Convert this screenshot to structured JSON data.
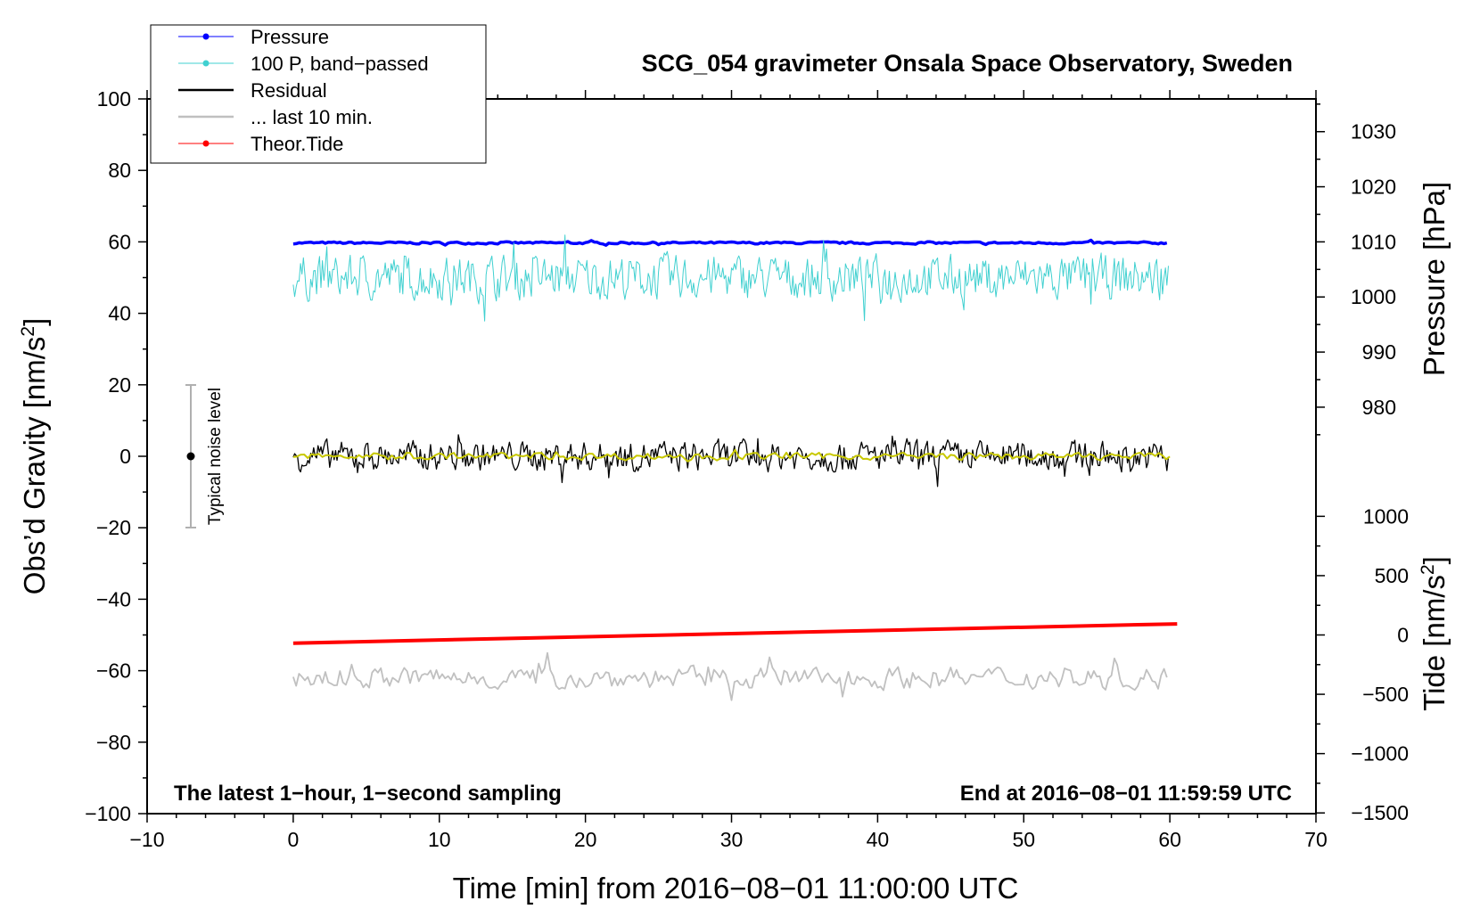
{
  "chart_data": {
    "type": "line",
    "title": "SCG_054 gravimeter Onsala Space Observatory, Sweden",
    "xlabel": "Time [min] from 2016−08−01 11:00:00 UTC",
    "ylabel_left": "Obs’d Gravity [nm/s",
    "ylabel_left_sup": "2",
    "ylabel_left_end": "]",
    "ylabel_right_top": "Pressure [hPa]",
    "ylabel_right_bottom": "Tide [nm/s",
    "ylabel_right_bottom_sup": "2",
    "ylabel_right_bottom_end": "]",
    "xlim": [
      -10,
      70
    ],
    "ylim_left": [
      -100,
      100
    ],
    "x_ticks": [
      "−10",
      "0",
      "10",
      "20",
      "30",
      "40",
      "50",
      "60",
      "70"
    ],
    "y_left_ticks": [
      "−100",
      "−80",
      "−60",
      "−40",
      "−20",
      "0",
      "20",
      "40",
      "60",
      "80",
      "100"
    ],
    "pressure_ticks": [
      "980",
      "990",
      "1000",
      "1010",
      "1020",
      "1030"
    ],
    "tide_ticks": [
      "−1500",
      "−1000",
      "−500",
      "0",
      "500",
      "1000"
    ],
    "annotation_left": "The latest 1−hour, 1−second sampling",
    "annotation_right": "End at 2016−08−01 11:59:59 UTC",
    "noise_label": "Typical noise level",
    "noise_bar": {
      "x": -7,
      "center": 0,
      "low": -20,
      "high": 20
    },
    "legend": [
      {
        "label": "Pressure",
        "color": "#0000ff",
        "marker": true
      },
      {
        "label": "100 P, band−passed",
        "color": "#40d0d0",
        "marker": true
      },
      {
        "label": "Residual",
        "color": "#000000",
        "marker": false
      },
      {
        "label": "... last 10 min.",
        "color": "#c0c0c0",
        "marker": false
      },
      {
        "label": "Theor.Tide",
        "color": "#ff0000",
        "marker": true
      }
    ],
    "series": [
      {
        "name": "Pressure",
        "color": "#0000ff",
        "x_range": [
          0,
          60
        ],
        "level": 59.7,
        "amplitude": 0.3
      },
      {
        "name": "100 P, band−passed",
        "color": "#40d0d0",
        "x_range": [
          0,
          60
        ],
        "level": 50,
        "amplitude": 6
      },
      {
        "name": "Residual",
        "color": "#000000",
        "x_range": [
          0,
          60
        ],
        "level": 0,
        "amplitude": 4
      },
      {
        "color": "#c8c800",
        "x_range": [
          0,
          60
        ],
        "level": 0,
        "amplitude": 1
      },
      {
        "name": "... last 10 min.",
        "color": "#c0c0c0",
        "x_range": [
          0,
          60
        ],
        "level": -62,
        "amplitude": 3
      },
      {
        "name": "Theor.Tide",
        "color": "#ff0000",
        "x": [
          0,
          60.5
        ],
        "y": [
          -52.3,
          -46.9
        ]
      }
    ]
  }
}
